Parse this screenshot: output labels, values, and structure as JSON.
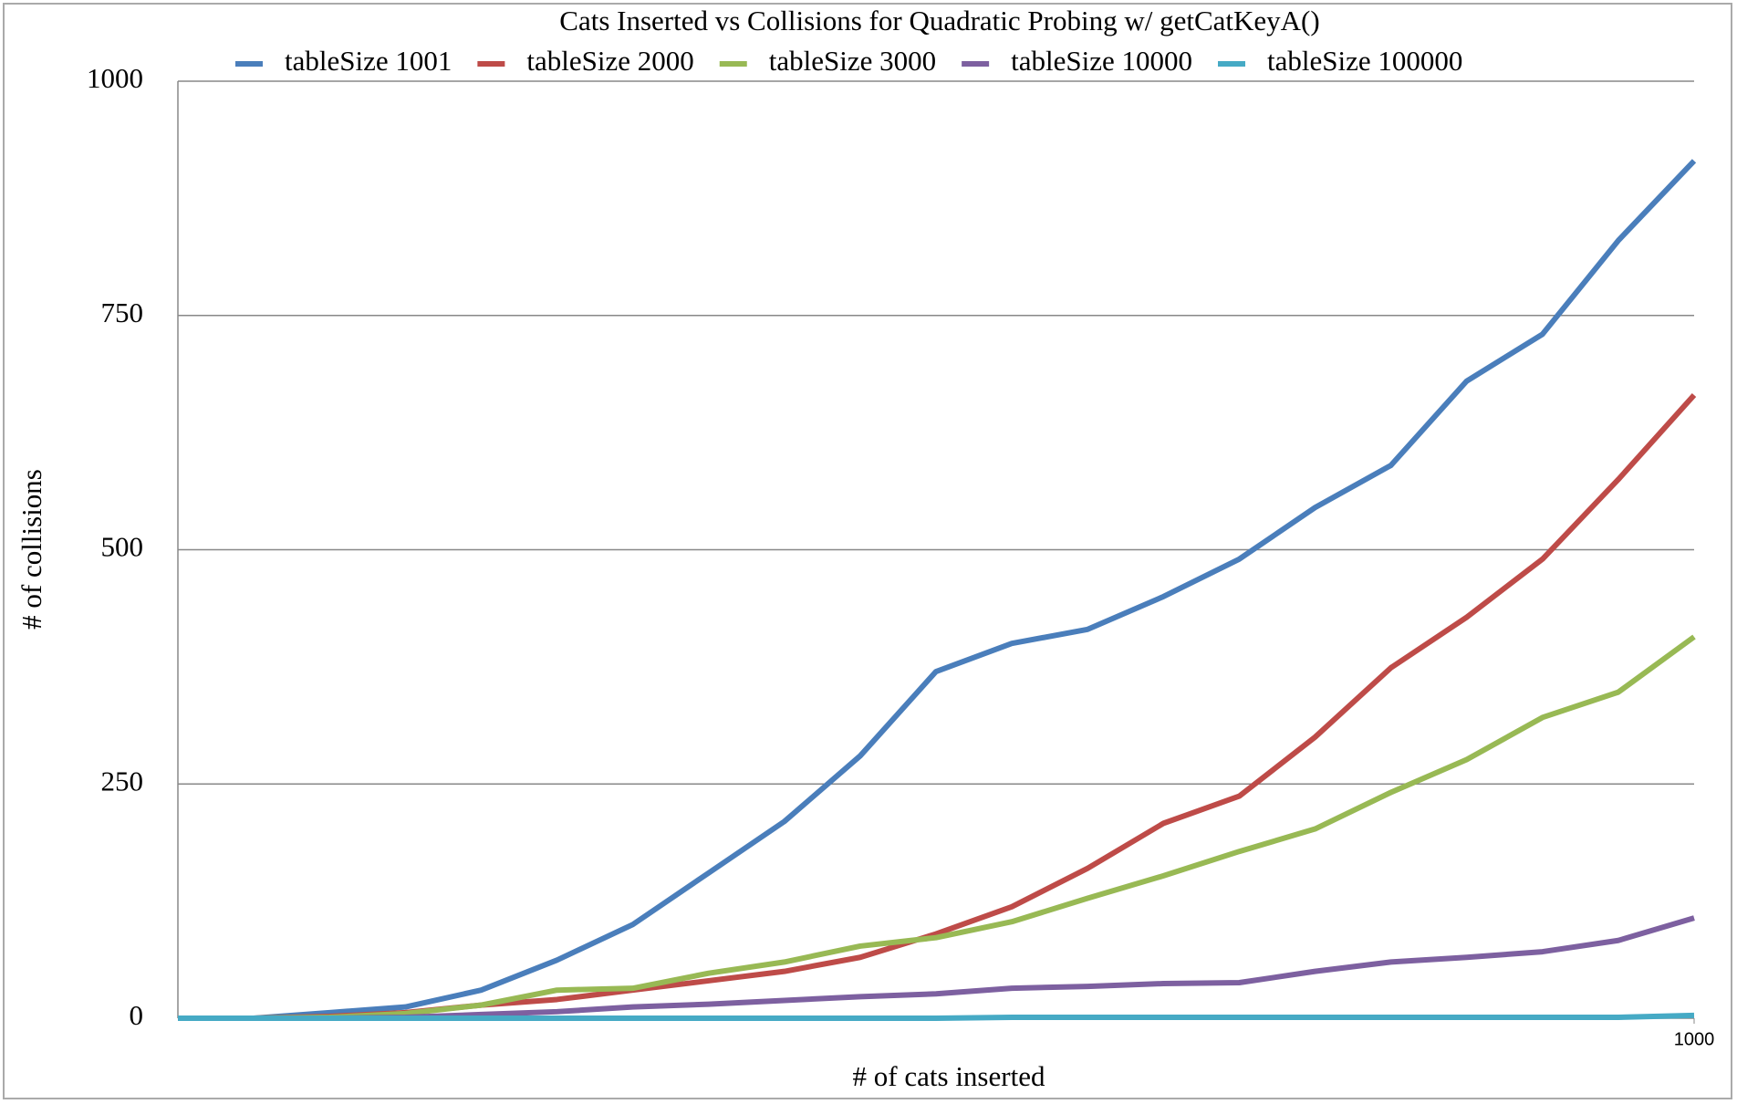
{
  "chart_data": {
    "type": "line",
    "title": "Cats Inserted vs Collisions for Quadratic Probing w/ getCatKeyA()",
    "x_label": "# of cats inserted",
    "y_label": "# of collisions",
    "x": [
      0,
      50,
      100,
      150,
      200,
      250,
      300,
      350,
      400,
      450,
      500,
      550,
      600,
      650,
      700,
      750,
      800,
      850,
      900,
      950,
      1000
    ],
    "xlim": [
      0,
      1000
    ],
    "xticks": [
      1000
    ],
    "ylim": [
      0,
      1000
    ],
    "yticks": [
      0,
      250,
      500,
      750,
      1000
    ],
    "grid": true,
    "legend": "top",
    "series": [
      {
        "name": "tableSize 1001",
        "color": "#4a7ebb",
        "values": [
          0,
          0,
          6,
          12,
          30,
          62,
          100,
          155,
          210,
          280,
          370,
          400,
          415,
          450,
          490,
          545,
          590,
          680,
          730,
          830,
          915
        ]
      },
      {
        "name": "tableSize 2000",
        "color": "#be4b48",
        "values": [
          0,
          0,
          2,
          6,
          14,
          20,
          30,
          40,
          50,
          65,
          90,
          119,
          160,
          208,
          237,
          300,
          374,
          428,
          490,
          575,
          665
        ]
      },
      {
        "name": "tableSize 3000",
        "color": "#98b954",
        "values": [
          0,
          0,
          1,
          5,
          14,
          30,
          32,
          48,
          60,
          77,
          86,
          103,
          128,
          152,
          178,
          202,
          241,
          276,
          321,
          348,
          407
        ]
      },
      {
        "name": "tableSize 10000",
        "color": "#7d60a0",
        "values": [
          0,
          0,
          0,
          1,
          4,
          7,
          12,
          15,
          19,
          23,
          26,
          32,
          34,
          37,
          38,
          50,
          60,
          65,
          71,
          83,
          107
        ]
      },
      {
        "name": "tableSize 100000",
        "color": "#46aac5",
        "values": [
          0,
          0,
          0,
          0,
          0,
          0,
          0,
          0,
          0,
          0,
          0,
          1,
          1,
          1,
          1,
          1,
          1,
          1,
          1,
          1,
          3
        ]
      }
    ]
  }
}
